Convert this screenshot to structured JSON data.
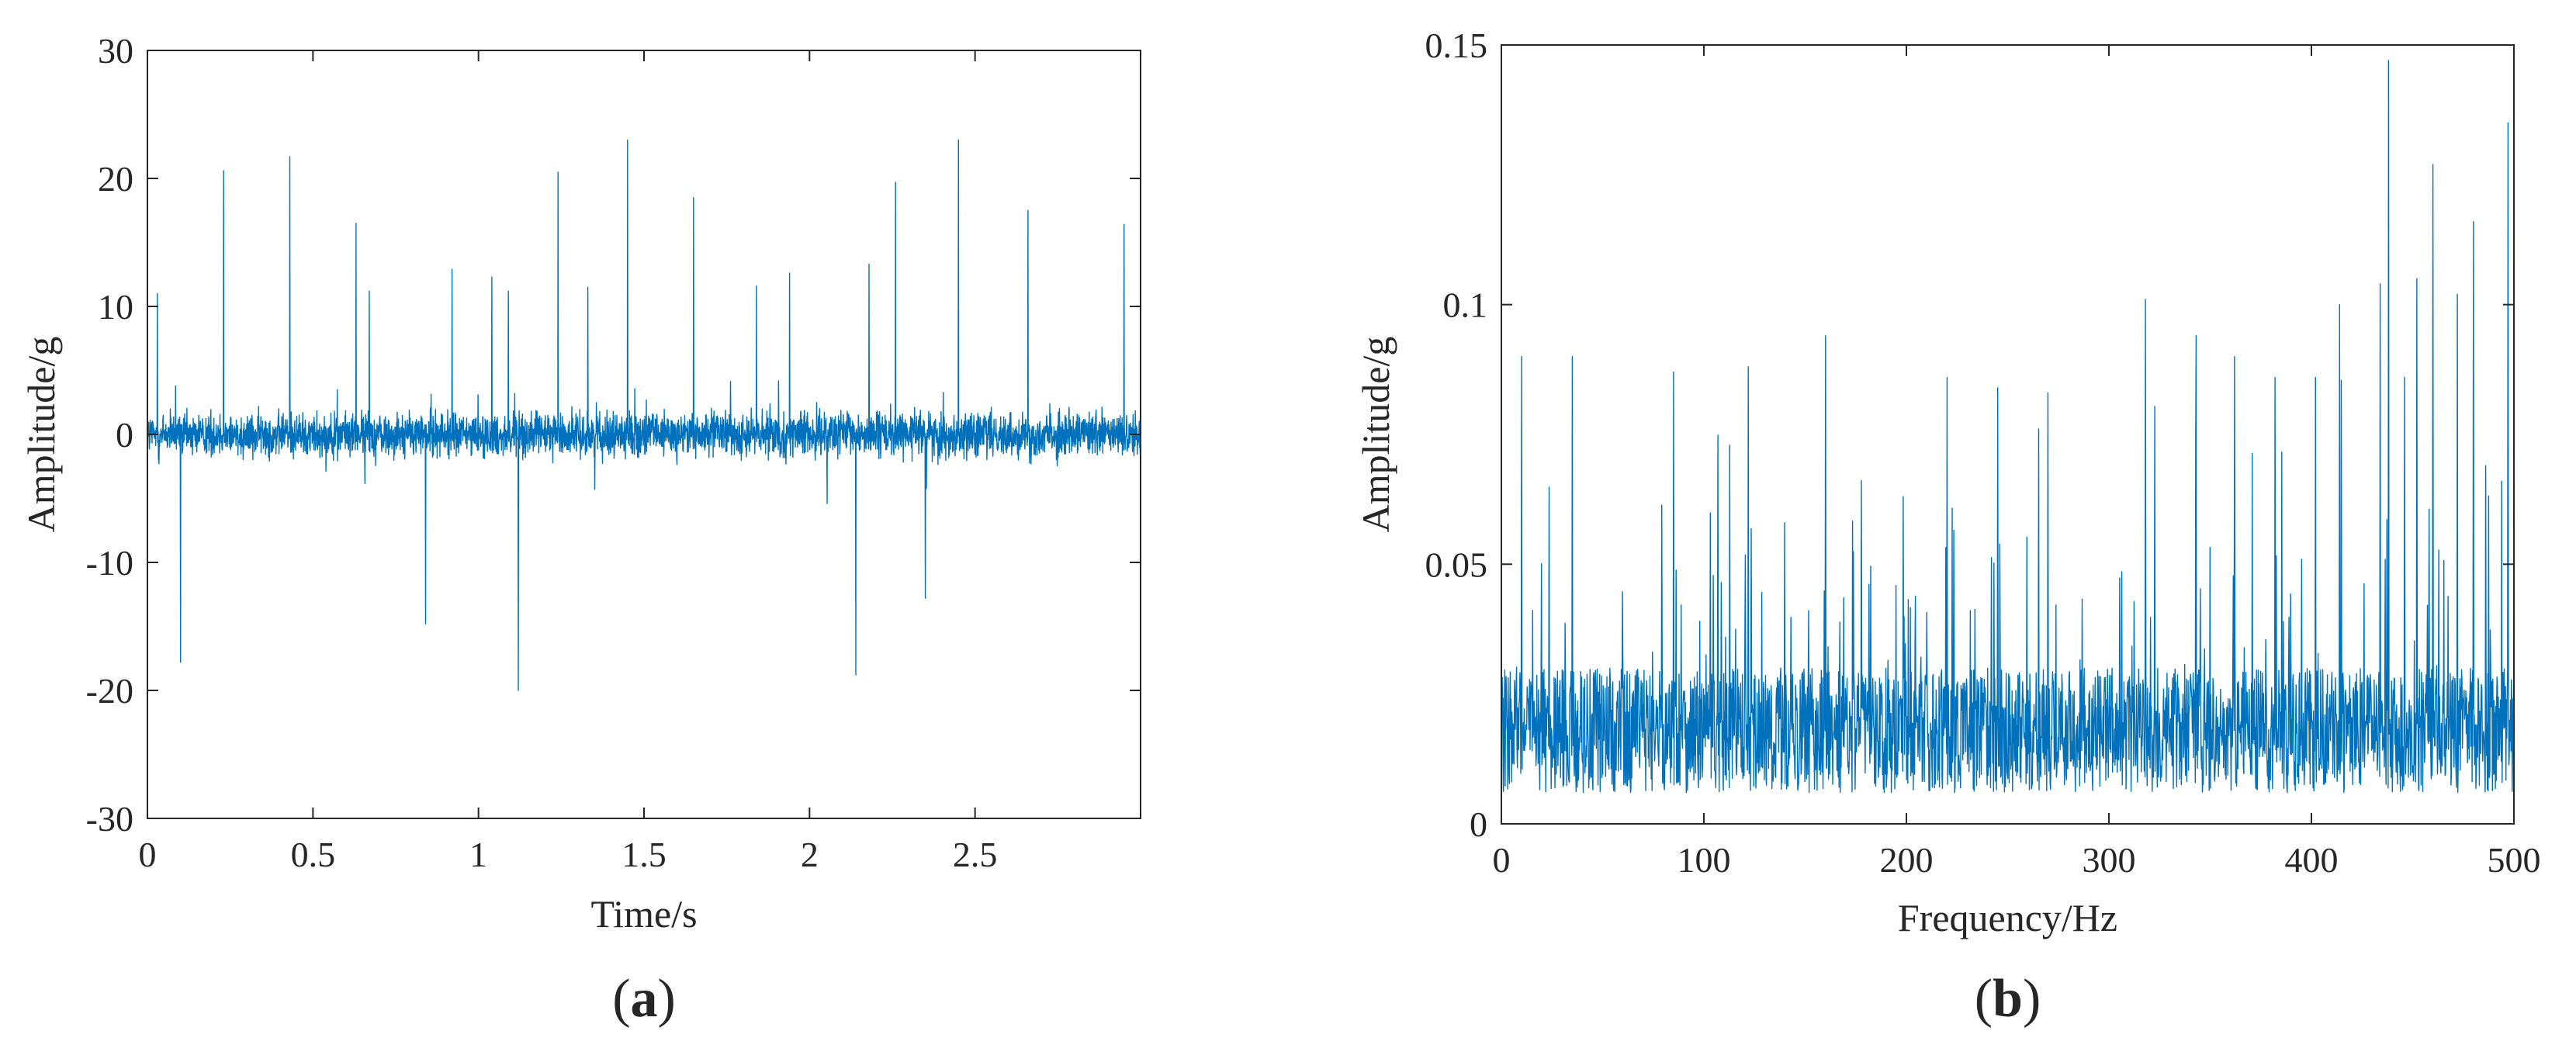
{
  "colors": {
    "series": "#0072bd",
    "axes": "#262626",
    "background": "#ffffff"
  },
  "chart_data": [
    {
      "type": "line",
      "panel_label": "a",
      "title": "",
      "xlabel": "Time/s",
      "ylabel": "Amplitude/g",
      "xlim": [
        0,
        3
      ],
      "ylim": [
        -30,
        30
      ],
      "x_ticks": [
        0,
        0.5,
        1,
        1.5,
        2,
        2.5
      ],
      "x_tick_labels": [
        "0",
        "0.5",
        "1",
        "1.5",
        "2",
        "2.5"
      ],
      "y_ticks": [
        -30,
        -20,
        -10,
        0,
        10,
        20,
        30
      ],
      "y_tick_labels": [
        "-30",
        "-20",
        "-10",
        "0",
        "10",
        "20",
        "30"
      ],
      "grid": false,
      "series": [
        {
          "noise_amplitude": 1.5,
          "spikes": {
            "x": [
              0.03,
              0.1,
              0.23,
              0.43,
              0.63,
              0.67,
              0.84,
              0.92,
              1.04,
              1.09,
              1.12,
              1.24,
              1.33,
              1.45,
              1.65,
              1.84,
              1.94,
              2.14,
              2.18,
              2.26,
              2.35,
              2.45,
              2.66,
              2.95
            ],
            "y": [
              11,
              -17.8,
              20.6,
              21.7,
              16.5,
              11.2,
              -14.8,
              12.9,
              12.3,
              11.2,
              -20,
              20.5,
              11.5,
              23,
              18.5,
              11.6,
              12.6,
              -18.8,
              13.3,
              19.7,
              -12.8,
              23,
              17.5,
              16.4
            ]
          }
        }
      ]
    },
    {
      "type": "line",
      "panel_label": "b",
      "title": "",
      "xlabel": "Frequency/Hz",
      "ylabel": "Amplitude/g",
      "xlim": [
        0,
        500
      ],
      "ylim": [
        0,
        0.15
      ],
      "x_ticks": [
        0,
        100,
        200,
        300,
        400,
        500
      ],
      "x_tick_labels": [
        "0",
        "100",
        "200",
        "300",
        "400",
        "500"
      ],
      "y_ticks": [
        0,
        0.05,
        0.1,
        0.15
      ],
      "y_tick_labels": [
        "0",
        "0.05",
        "0.1",
        "0.15"
      ],
      "grid": false,
      "series": [
        {
          "baseline_mean": 0.018,
          "baseline_spread": 0.012,
          "peaks": {
            "x": [
              10,
              35,
              85,
              122,
              160,
              220,
              245,
              270,
              318,
              343,
              362,
              382,
              402,
              414,
              434,
              438,
              446,
              452,
              460,
              472,
              480,
              486,
              494,
              497
            ],
            "y": [
              0.09,
              0.09,
              0.087,
              0.088,
              0.094,
              0.086,
              0.084,
              0.083,
              0.101,
              0.094,
              0.09,
              0.086,
              0.086,
              0.1,
              0.104,
              0.147,
              0.086,
              0.105,
              0.127,
              0.102,
              0.116,
              0.069,
              0.066,
              0.135
            ]
          }
        }
      ]
    }
  ]
}
